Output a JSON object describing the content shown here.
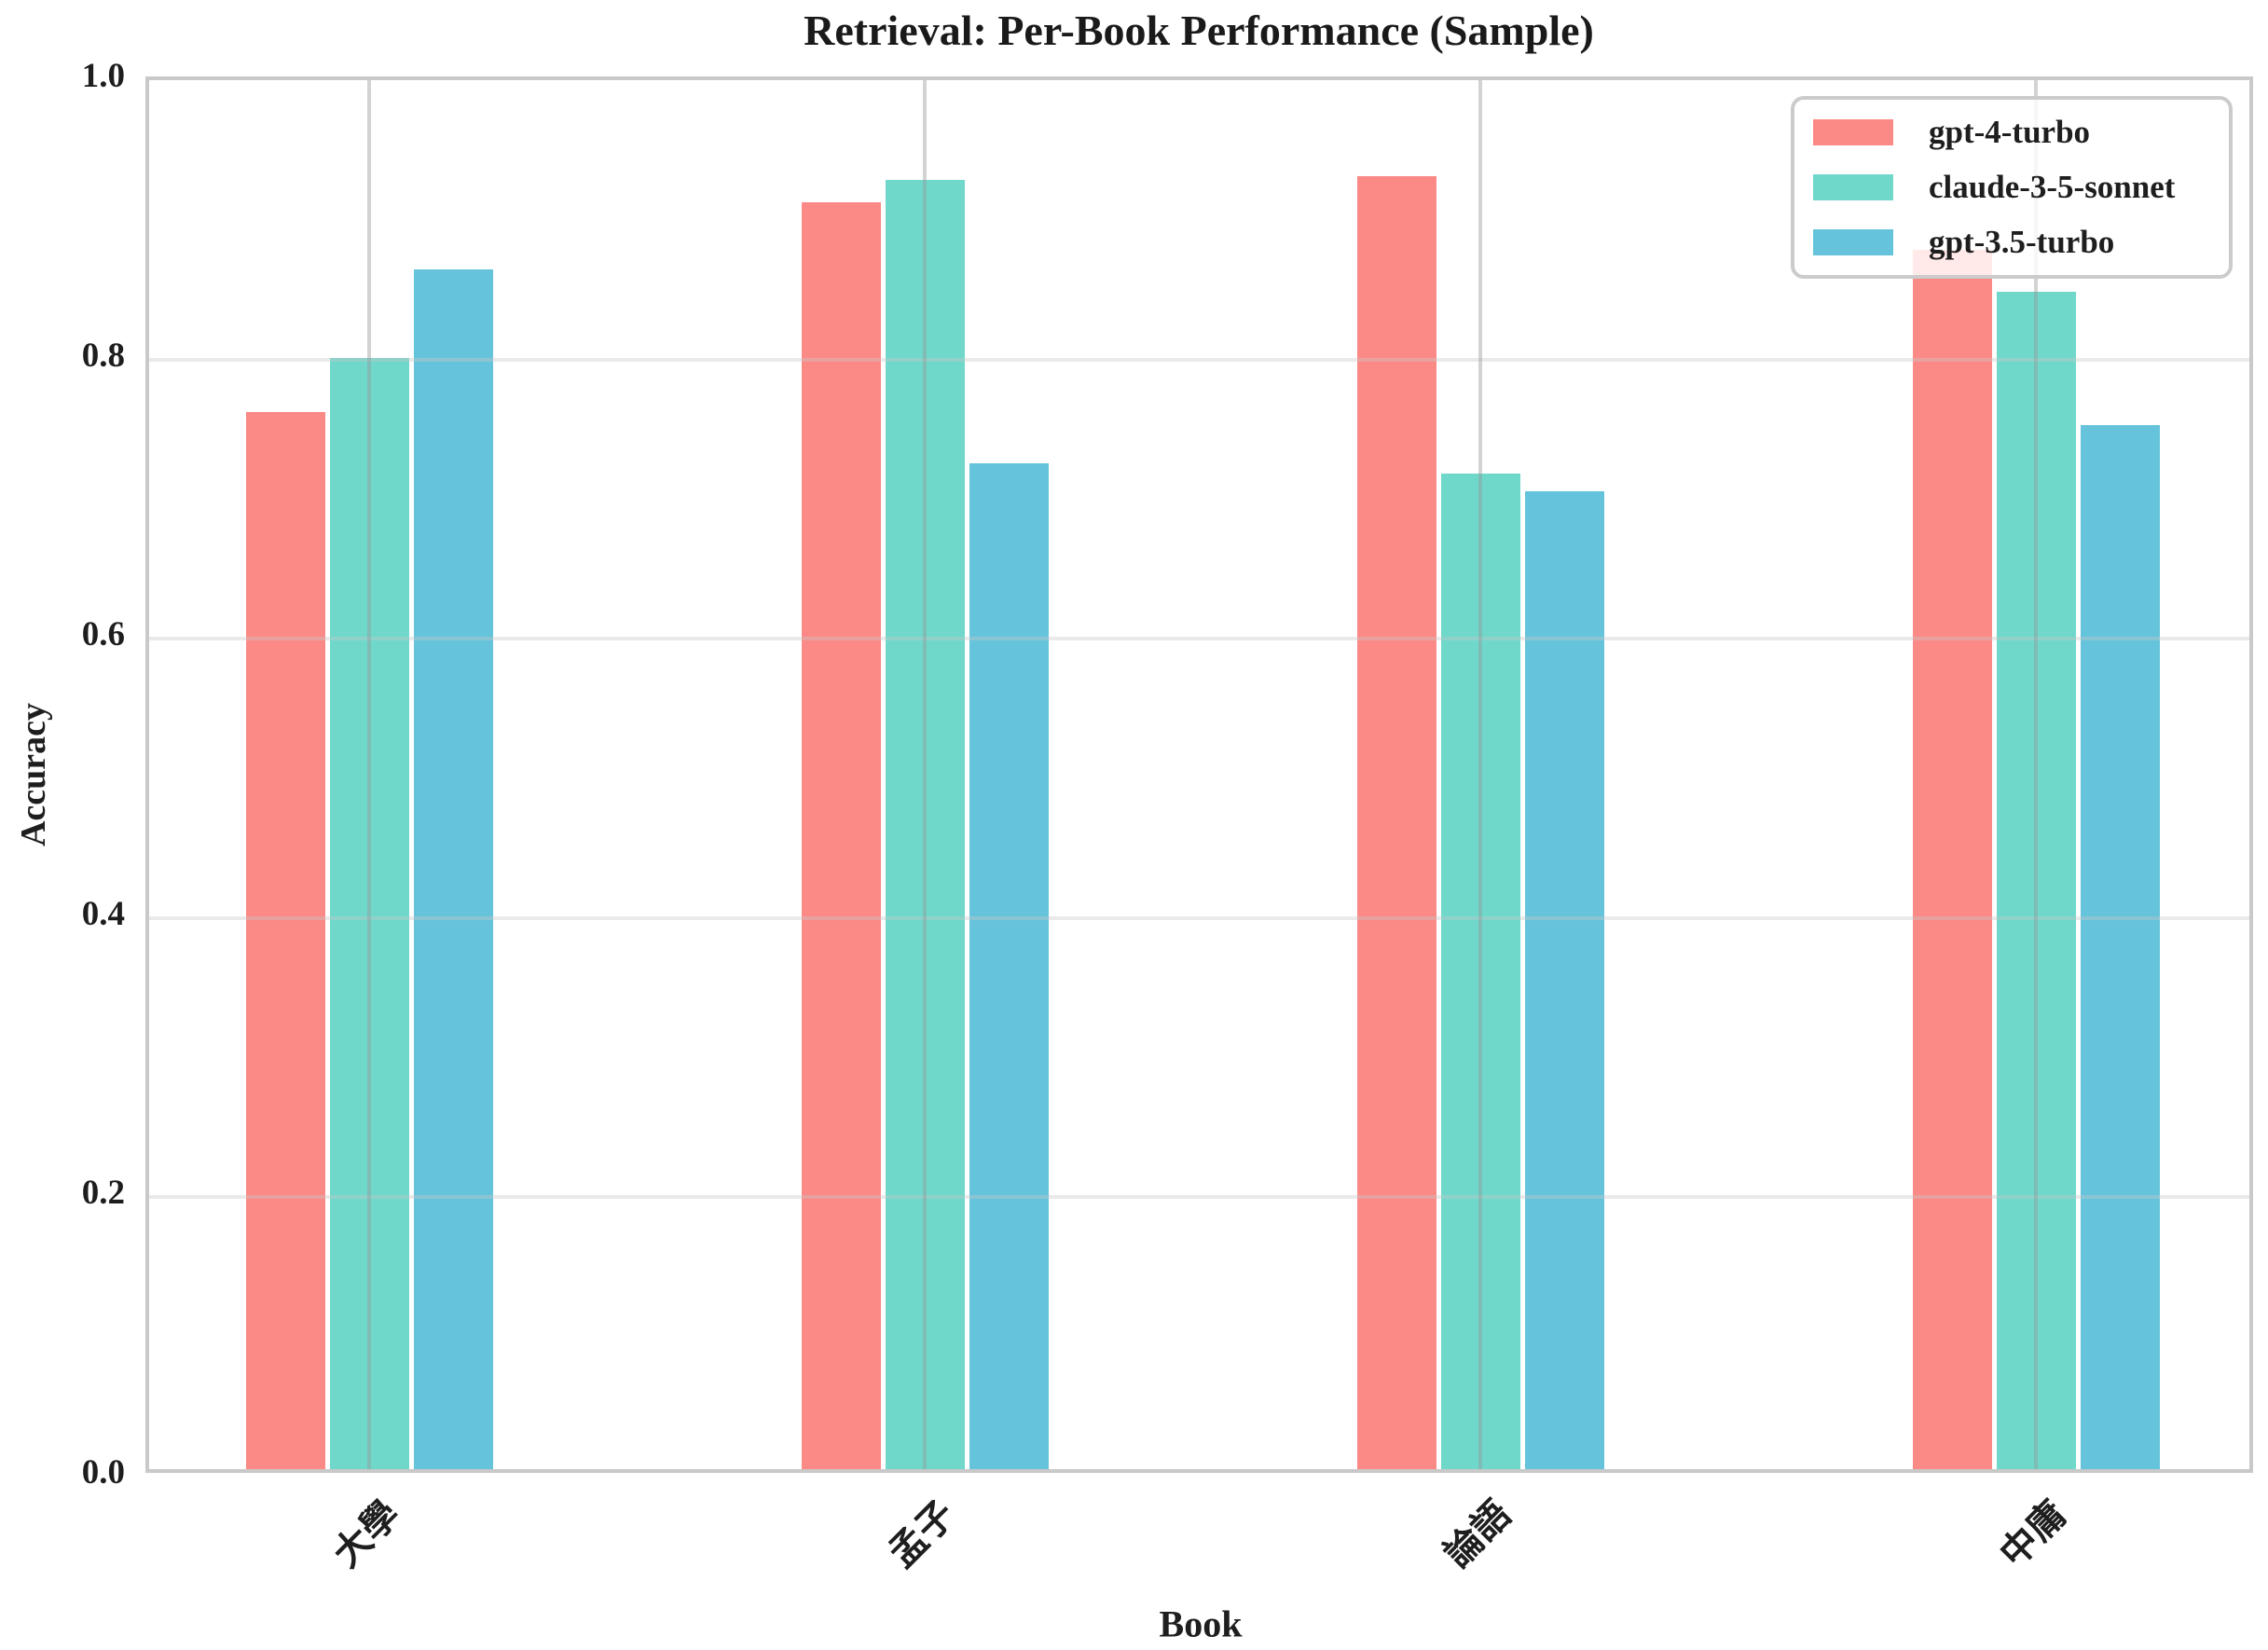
{
  "chart_data": {
    "type": "bar",
    "title": "Retrieval: Per-Book Performance (Sample)",
    "xlabel": "Book",
    "ylabel": "Accuracy",
    "categories": [
      "大學",
      "孟子",
      "論語",
      "中庸"
    ],
    "series": [
      {
        "name": "gpt-4-turbo",
        "color": "#FB8A87",
        "values": [
          0.757,
          0.907,
          0.926,
          0.873
        ]
      },
      {
        "name": "claude-3-5-sonnet",
        "color": "#6FD8CB",
        "values": [
          0.796,
          0.923,
          0.713,
          0.843
        ]
      },
      {
        "name": "gpt-3.5-turbo",
        "color": "#66C3DC",
        "values": [
          0.859,
          0.72,
          0.7,
          0.748
        ]
      }
    ],
    "ylim": [
      0.0,
      1.0
    ],
    "yticks": [
      0.0,
      0.2,
      0.4,
      0.6,
      0.8,
      1.0
    ],
    "grid": true,
    "legend_position": "upper right",
    "spine_color": "#c9c9c9",
    "background": "#ffffff"
  }
}
